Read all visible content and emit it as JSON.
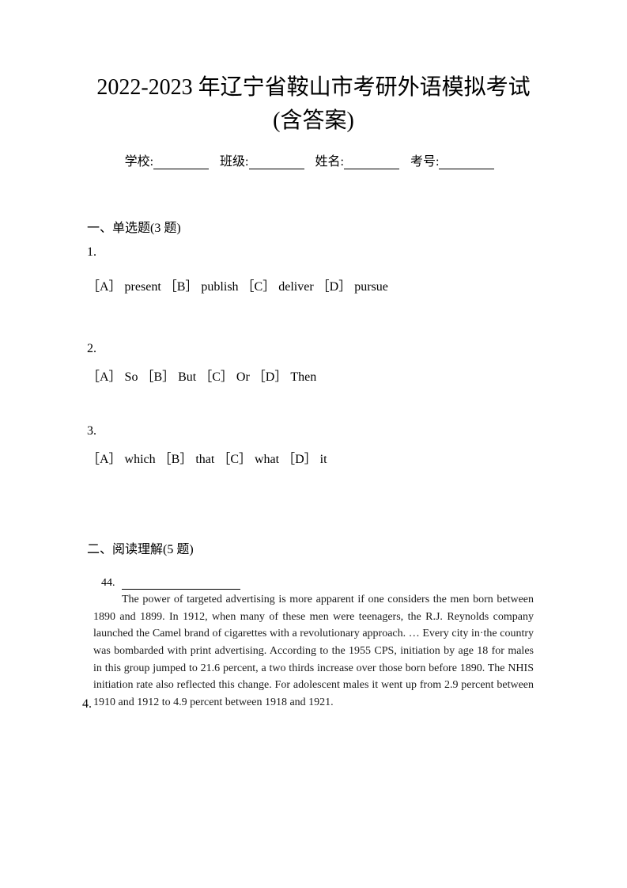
{
  "title": "2022-2023 年辽宁省鞍山市考研外语模拟考试(含答案)",
  "info": {
    "school_label": "学校:",
    "class_label": "班级:",
    "name_label": "姓名:",
    "id_label": "考号:"
  },
  "section1": {
    "title": "一、单选题(3 题)",
    "questions": [
      {
        "num": "1.",
        "options": "［A］ present ［B］ publish ［C］ deliver ［D］ pursue"
      },
      {
        "num": "2.",
        "options": "［A］ So ［B］ But ［C］ Or ［D］ Then"
      },
      {
        "num": "3.",
        "options": "［A］ which ［B］ that ［C］ what ［D］ it"
      }
    ]
  },
  "section2": {
    "title": "二、阅读理解(5 题)",
    "passage_num": "44.",
    "passage_text": "The power of targeted advertising is more apparent if one considers the men born between 1890 and 1899. In 1912, when many of these men were teenagers, the R.J. Reynolds company launched the Camel brand of cigarettes with a revolutionary approach. … Every city in·the country was bombarded with print advertising. According to the 1955 CPS, initiation by age 18 for males in this group jumped to 21.6 percent, a two thirds increase over those born before 1890. The NHIS initiation rate also reflected this change. For adolescent males it went up from 2.9 percent between 1910 and 1912 to 4.9 percent between 1918 and 1921.",
    "q4_label": "4."
  },
  "colors": {
    "background": "#ffffff",
    "text": "#000000",
    "passage_text": "#1a1a1a"
  }
}
